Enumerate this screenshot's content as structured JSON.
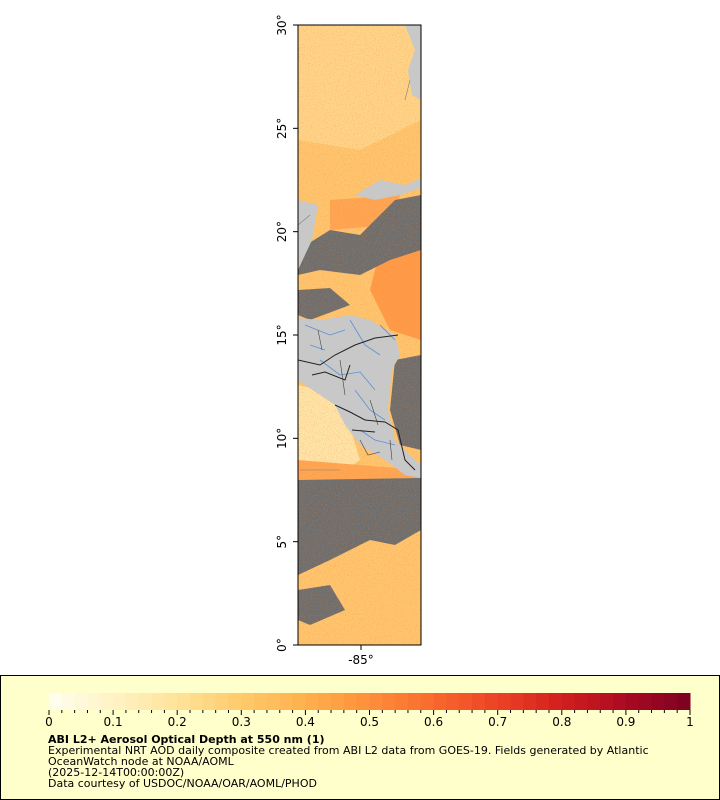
{
  "map": {
    "lat_ticks": [
      "0°",
      "5°",
      "10°",
      "15°",
      "20°",
      "25°",
      "30°"
    ],
    "lon_ticks": [
      "-85°"
    ],
    "colors": {
      "land": "#c8c8c8",
      "no_data": "#6e6e6e",
      "coast": "#808080",
      "rivers": "#5a8fd6",
      "borders": "#202020"
    }
  },
  "colorbar": {
    "ticks": [
      "0",
      "0.1",
      "0.2",
      "0.3",
      "0.4",
      "0.5",
      "0.6",
      "0.7",
      "0.8",
      "0.9",
      "1"
    ],
    "stops": [
      "#fffff0",
      "#fff3c4",
      "#ffe29a",
      "#ffca6a",
      "#ffb04c",
      "#ff8f3a",
      "#f8692e",
      "#ec4226",
      "#d21f1e",
      "#aa0a22",
      "#7c0022"
    ]
  },
  "legend": {
    "title": "ABI L2+ Aerosol Optical Depth at 550 nm (1)",
    "line1": "Experimental NRT AOD daily composite created from ABI L2 data from GOES-19. Fields generated by Atlantic",
    "line2": "OceanWatch node at NOAA/AOML",
    "line3": "(2025-12-14T00:00:00Z)",
    "line4": "Data courtesy of USDOC/NOAA/OAR/AOML/PHOD"
  }
}
